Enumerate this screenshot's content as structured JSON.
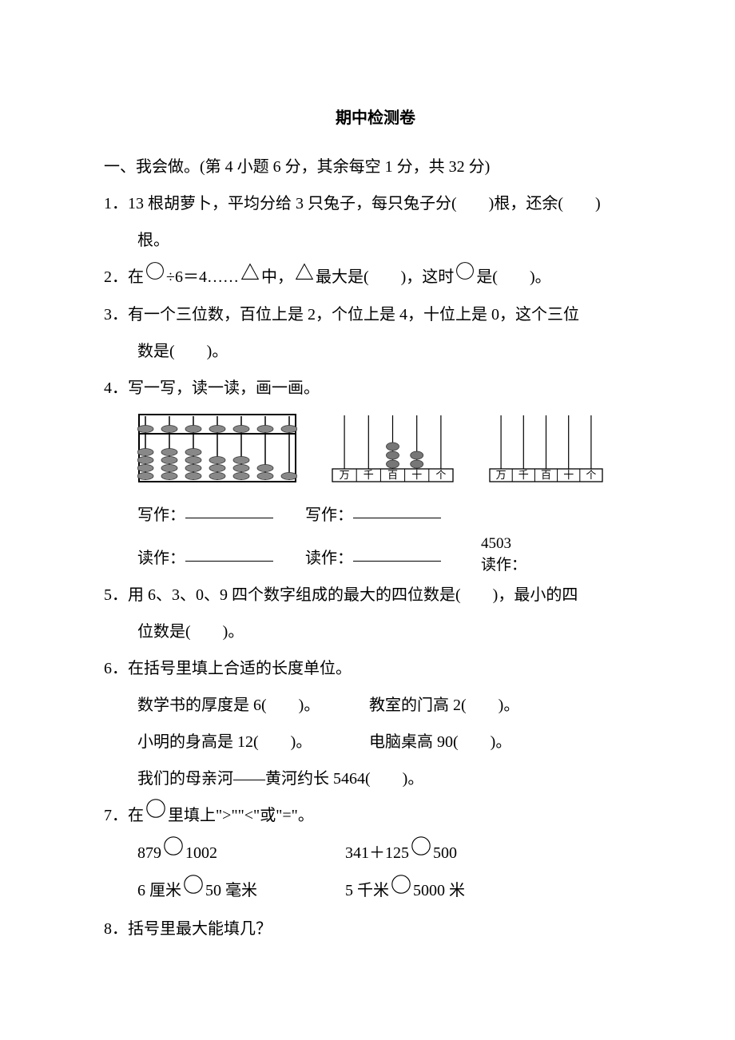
{
  "title": "期中检测卷",
  "section1": {
    "heading": "一、我会做。(第 4 小题 6 分，其余每空 1 分，共 32 分)",
    "q1": {
      "num": "1．",
      "text_a": "13 根胡萝卜，平均分给 3 只兔子，每只兔子分(　　)根，还余(　　)",
      "text_b": "根。"
    },
    "q2": {
      "num": "2．",
      "t1": "在",
      "t2": "÷6＝4……",
      "t3": "中，",
      "t4": "最大是(　　)，这时",
      "t5": "是(　　)。"
    },
    "q3": {
      "num": "3．",
      "line1": "有一个三位数，百位上是 2，个位上是 4，十位上是 0，这个三位",
      "line2": "数是(　　)。"
    },
    "q4": {
      "num": "4．",
      "text": "写一写，读一读，画一画。",
      "write_label": "写作：",
      "read_label": "读作：",
      "num4503": "4503",
      "read_colon": "读作：",
      "place_labels": [
        "万",
        "千",
        "百",
        "十",
        "个"
      ],
      "abacus": {
        "frame_color": "#000000",
        "bead_fill": "#888888",
        "bead_stroke": "#333333",
        "rods": 7,
        "upper_beads": [
          1,
          1,
          1,
          1,
          1,
          1,
          1
        ],
        "lower_beads": [
          4,
          4,
          4,
          3,
          3,
          2,
          1
        ]
      },
      "chart1_beads": {
        "r2": 3,
        "r3": 2
      },
      "chart_colors": {
        "line": "#000000",
        "bead_fill": "#777777",
        "bead_stroke": "#333333"
      }
    },
    "q5": {
      "num": "5．",
      "line1": "用 6、3、0、9 四个数字组成的最大的四位数是(　　)，最小的四",
      "line2": "位数是(　　)。"
    },
    "q6": {
      "num": "6．",
      "text": "在括号里填上合适的长度单位。",
      "r1a": "数学书的厚度是 6(　　)。",
      "r1b": "教室的门高 2(　　)。",
      "r2a": "小明的身高是 12(　　)。",
      "r2b": "电脑桌高 90(　　)。",
      "r3": "我们的母亲河——黄河约长 5464(　　)。"
    },
    "q7": {
      "num": "7．",
      "t1": "在",
      "t2": "里填上\">\"\"<\"或\"=\"。",
      "c1a": "879",
      "c1b": "1002",
      "c2a": "341＋125",
      "c2b": "500",
      "c3a": "6 厘米",
      "c3b": "50 毫米",
      "c4a": "5 千米",
      "c4b": "5000 米"
    },
    "q8": {
      "num": "8．",
      "text": "括号里最大能填几？"
    }
  }
}
